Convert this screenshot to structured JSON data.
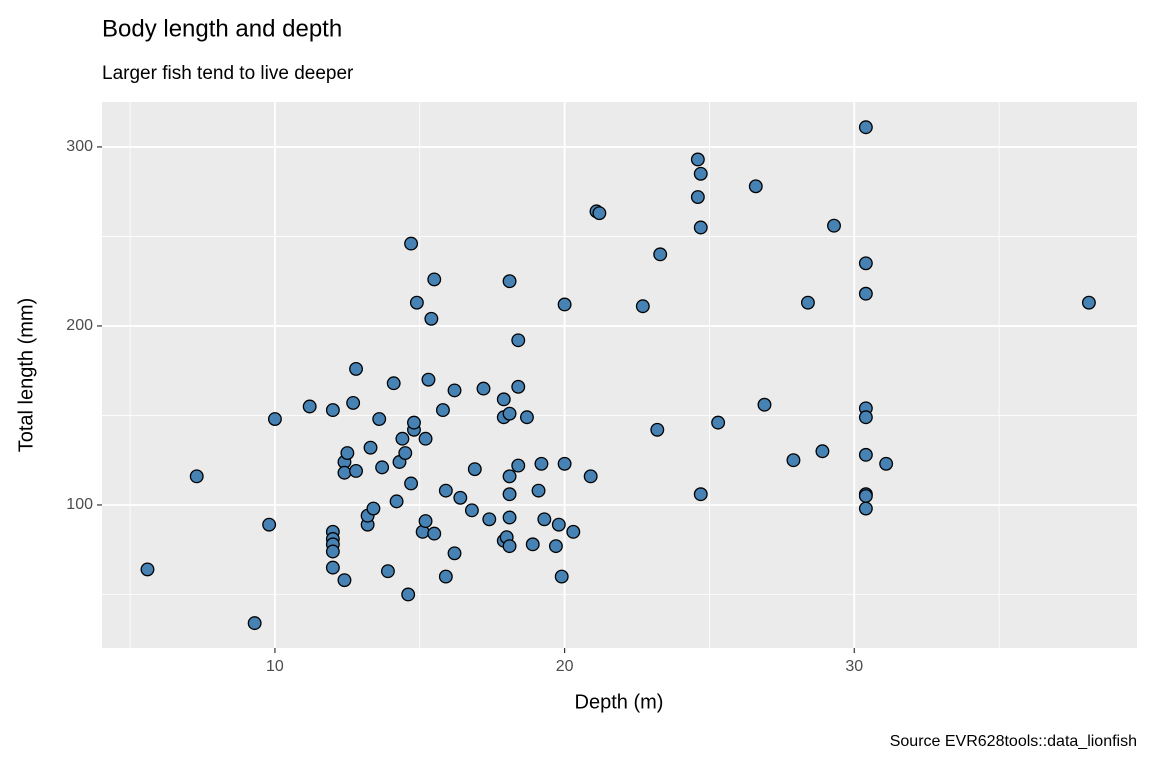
{
  "chart_data": {
    "type": "scatter",
    "title": "Body length and depth",
    "subtitle": "Larger fish tend to live deeper",
    "x_label": "Depth (m)",
    "y_label": "Total length (mm)",
    "caption": "Source EVR628tools::data_lionfish",
    "color": "#4682b4",
    "grid": true,
    "xlim": [
      4.03,
      39.76
    ],
    "xticks": [
      10,
      20,
      30
    ],
    "ylim": [
      20.1,
      325.1
    ],
    "yticks": [
      100,
      200,
      300
    ],
    "x": [
      5.6,
      7.3,
      9.3,
      9.8,
      10.0,
      11.2,
      12.0,
      12.0,
      12.0,
      12.0,
      12.0,
      12.0,
      12.4,
      12.4,
      12.4,
      12.5,
      12.7,
      12.8,
      12.8,
      13.2,
      13.2,
      13.3,
      13.4,
      13.6,
      13.7,
      13.9,
      14.1,
      14.2,
      14.3,
      14.4,
      14.5,
      14.6,
      14.7,
      14.7,
      14.8,
      14.8,
      14.9,
      15.1,
      15.2,
      15.2,
      15.3,
      15.4,
      15.5,
      15.5,
      15.8,
      15.9,
      15.9,
      16.2,
      16.2,
      16.4,
      16.8,
      16.9,
      17.2,
      17.4,
      17.9,
      17.9,
      17.9,
      18.0,
      18.1,
      18.1,
      18.1,
      18.1,
      18.1,
      18.1,
      18.4,
      18.4,
      18.4,
      18.7,
      18.9,
      19.1,
      19.2,
      19.3,
      19.7,
      19.8,
      19.9,
      20.0,
      20.0,
      20.3,
      20.9,
      21.1,
      21.2,
      22.7,
      23.2,
      23.3,
      24.6,
      24.6,
      24.7,
      24.7,
      24.7,
      25.3,
      26.6,
      26.9,
      27.9,
      28.4,
      28.9,
      29.3,
      30.4,
      30.4,
      30.4,
      30.4,
      30.4,
      30.4,
      30.4,
      30.4,
      30.4,
      31.1,
      38.1
    ],
    "values": [
      64,
      116,
      34,
      89,
      148,
      155,
      153,
      85,
      81,
      78,
      74,
      65,
      58,
      124,
      118,
      129,
      157,
      176,
      119,
      89,
      94,
      132,
      98,
      148,
      121,
      63,
      168,
      102,
      124,
      137,
      129,
      50,
      246,
      112,
      142,
      146,
      213,
      85,
      91,
      137,
      170,
      204,
      226,
      84,
      153,
      108,
      60,
      164,
      73,
      104,
      97,
      120,
      165,
      92,
      159,
      149,
      80,
      82,
      225,
      151,
      116,
      106,
      93,
      77,
      192,
      166,
      122,
      149,
      78,
      108,
      123,
      92,
      77,
      89,
      60,
      123,
      212,
      85,
      116,
      264,
      263,
      211,
      142,
      240,
      293,
      272,
      285,
      255,
      106,
      146,
      278,
      156,
      125,
      213,
      130,
      256,
      311,
      235,
      218,
      154,
      149,
      128,
      106,
      105,
      98,
      123,
      213
    ]
  }
}
